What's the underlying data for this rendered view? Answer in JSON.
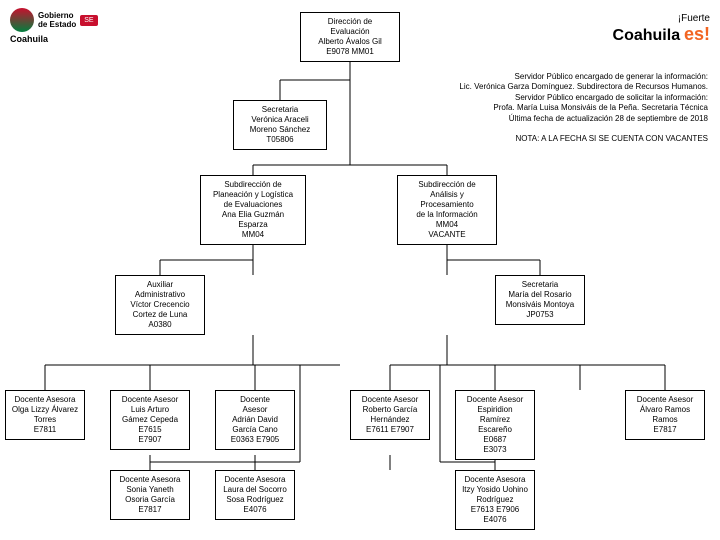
{
  "logos": {
    "left_text1": "Gobierno",
    "left_text2": "de Estado",
    "left_sub": "Coahuila",
    "right_text1": "¡Fuerte",
    "right_text2": "Coahuila",
    "right_tag": "es!"
  },
  "info_block": {
    "l1": "Servidor Público encargado de generar la información:",
    "l2": "Lic. Verónica Garza Domínguez. Subdirectora de Recursos Humanos.",
    "l3": "Servidor Público encargado de solicitar la información:",
    "l4": "Profa. María Luisa Monsiváis de la Peña. Secretaria Técnica",
    "l5": "Última fecha de actualización 28 de septiembre de 2018",
    "note": "NOTA: A LA FECHA SI SE CUENTA CON VACANTES"
  },
  "nodes": {
    "direccion": "Dirección de\nEvaluación\nAlberto Ávalos Gil\nE9078 MM01",
    "secretaria1": "Secretaria\nVerónica Araceli\nMoreno Sánchez\nT05806",
    "sub_plan": "Subdirección de\nPlaneación y Logística\nde Evaluaciones\nAna Elia Guzmán\nEsparza\nMM04",
    "sub_analisis": "Subdirección de\nAnálisis y\nProcesamiento\nde la Información\nMM04\nVACANTE",
    "auxiliar": "Auxiliar\nAdministrativo\nVíctor Crecencio\nCortez de Luna\nA0380",
    "secretaria2": "Secretaria\nMaría del Rosario\nMonsiváis Montoya\nJP0753",
    "asesor1": "Docente Asesora\nOlga Lizzy Álvarez\nTorres\nE7811",
    "asesor2": "Docente Asesor\nLuis Arturo\nGámez Cepeda\nE7615\nE7907",
    "asesor3": "Docente\nAsesor\nAdrián David\nGarcía Cano\nE0363  E7905",
    "asesor4": "Docente Asesor\nRoberto García\nHernández\nE7611   E7907",
    "asesor5": "Docente Asesor\nEspiridion\nRamírez\nEscareño\nE0687\nE3073",
    "asesor6": "Docente Asesor\nÁlvaro Ramos\nRamos\nE7817",
    "asesor7": "Docente Asesora\nSonia Yaneth\nOsoria García\nE7817",
    "asesor8": "Docente Asesora\nLaura del Socorro\nSosa Rodríguez\nE4076",
    "asesor9": "Docente Asesora\nItzy Yosido Uohino\nRodríguez\nE7613  E7906\nE4076"
  },
  "colors": {
    "border": "#000000",
    "bg": "#ffffff",
    "logo_red": "#c8102e",
    "logo_green": "#007f3e",
    "logo_orange": "#f26522"
  }
}
